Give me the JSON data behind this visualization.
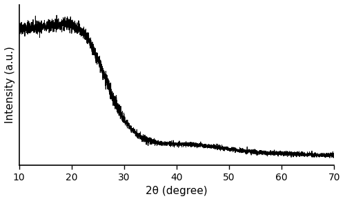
{
  "xlabel": "2θ (degree)",
  "ylabel": "Intensity (a.u.)",
  "xlim": [
    10,
    70
  ],
  "ylim": [
    0,
    1.08
  ],
  "xticks": [
    10,
    20,
    30,
    40,
    50,
    60,
    70
  ],
  "line_color": "#000000",
  "line_width": 0.7,
  "background_color": "#ffffff",
  "figsize": [
    5.0,
    2.92
  ],
  "dpi": 100,
  "seed": 42,
  "noise_scale_high": 0.022,
  "noise_scale_low": 0.008
}
